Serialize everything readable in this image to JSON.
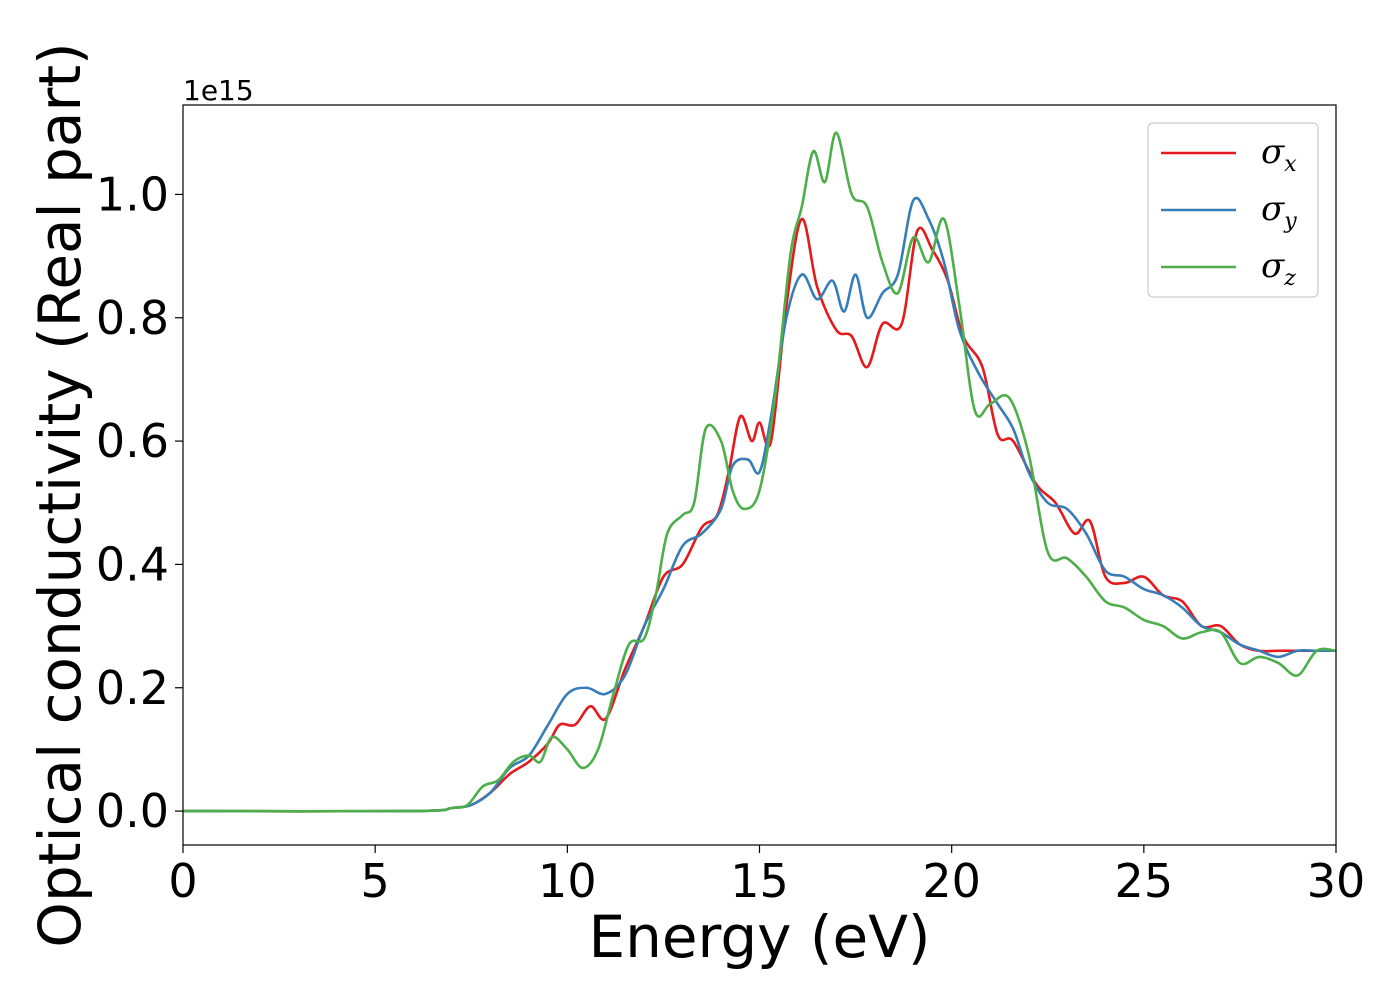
{
  "chart_data": {
    "type": "line",
    "xlabel": "Energy (eV)",
    "ylabel": "Optical conductivity (Real part)",
    "y_offset_text": "1e15",
    "xlim": [
      0,
      30
    ],
    "ylim": [
      -0.055,
      1.145
    ],
    "xticks": [
      0,
      5,
      10,
      15,
      20,
      25,
      30
    ],
    "yticks": [
      0.0,
      0.2,
      0.4,
      0.6,
      0.8,
      1.0
    ],
    "xtick_labels": [
      "0",
      "5",
      "10",
      "15",
      "20",
      "25",
      "30"
    ],
    "ytick_labels": [
      "0.0",
      "0.2",
      "0.4",
      "0.6",
      "0.8",
      "1.0"
    ],
    "grid": false,
    "legend_position": "top-right",
    "series": [
      {
        "name": "σx",
        "symbol": "σ",
        "subscript": "x",
        "color": "#e41a1c",
        "points": [
          [
            0,
            0
          ],
          [
            6,
            0
          ],
          [
            7,
            0.005
          ],
          [
            7.5,
            0.01
          ],
          [
            8,
            0.03
          ],
          [
            8.5,
            0.06
          ],
          [
            9,
            0.08
          ],
          [
            9.5,
            0.11
          ],
          [
            9.8,
            0.14
          ],
          [
            10.2,
            0.14
          ],
          [
            10.6,
            0.17
          ],
          [
            11,
            0.15
          ],
          [
            11.5,
            0.23
          ],
          [
            12,
            0.3
          ],
          [
            12.5,
            0.38
          ],
          [
            13,
            0.4
          ],
          [
            13.5,
            0.46
          ],
          [
            13.9,
            0.48
          ],
          [
            14.2,
            0.55
          ],
          [
            14.5,
            0.64
          ],
          [
            14.8,
            0.6
          ],
          [
            15,
            0.63
          ],
          [
            15.3,
            0.6
          ],
          [
            15.7,
            0.82
          ],
          [
            16.1,
            0.96
          ],
          [
            16.5,
            0.85
          ],
          [
            17,
            0.78
          ],
          [
            17.4,
            0.77
          ],
          [
            17.8,
            0.72
          ],
          [
            18.2,
            0.79
          ],
          [
            18.7,
            0.79
          ],
          [
            19.1,
            0.94
          ],
          [
            19.5,
            0.91
          ],
          [
            19.9,
            0.86
          ],
          [
            20.3,
            0.77
          ],
          [
            20.8,
            0.72
          ],
          [
            21.2,
            0.61
          ],
          [
            21.6,
            0.6
          ],
          [
            22.2,
            0.53
          ],
          [
            22.7,
            0.5
          ],
          [
            23.2,
            0.45
          ],
          [
            23.6,
            0.47
          ],
          [
            24,
            0.38
          ],
          [
            24.5,
            0.37
          ],
          [
            25,
            0.38
          ],
          [
            25.5,
            0.35
          ],
          [
            26,
            0.34
          ],
          [
            26.5,
            0.3
          ],
          [
            27,
            0.3
          ],
          [
            27.5,
            0.27
          ],
          [
            28,
            0.26
          ],
          [
            28.5,
            0.26
          ],
          [
            29,
            0.26
          ],
          [
            29.5,
            0.26
          ],
          [
            30,
            0.26
          ]
        ]
      },
      {
        "name": "σy",
        "symbol": "σ",
        "subscript": "y",
        "color": "#377eb8",
        "points": [
          [
            0,
            0
          ],
          [
            6,
            0
          ],
          [
            7,
            0.005
          ],
          [
            7.5,
            0.01
          ],
          [
            8,
            0.03
          ],
          [
            8.5,
            0.07
          ],
          [
            9,
            0.09
          ],
          [
            9.5,
            0.14
          ],
          [
            10,
            0.19
          ],
          [
            10.5,
            0.2
          ],
          [
            11,
            0.19
          ],
          [
            11.5,
            0.22
          ],
          [
            12,
            0.3
          ],
          [
            12.5,
            0.36
          ],
          [
            13,
            0.43
          ],
          [
            13.5,
            0.45
          ],
          [
            14,
            0.49
          ],
          [
            14.3,
            0.56
          ],
          [
            14.7,
            0.57
          ],
          [
            15,
            0.55
          ],
          [
            15.3,
            0.64
          ],
          [
            15.7,
            0.8
          ],
          [
            16.1,
            0.87
          ],
          [
            16.5,
            0.83
          ],
          [
            16.9,
            0.86
          ],
          [
            17.2,
            0.81
          ],
          [
            17.5,
            0.87
          ],
          [
            17.8,
            0.8
          ],
          [
            18.2,
            0.84
          ],
          [
            18.6,
            0.87
          ],
          [
            19,
            0.99
          ],
          [
            19.4,
            0.96
          ],
          [
            19.8,
            0.89
          ],
          [
            20.2,
            0.78
          ],
          [
            20.7,
            0.71
          ],
          [
            21.2,
            0.66
          ],
          [
            21.6,
            0.62
          ],
          [
            22,
            0.55
          ],
          [
            22.5,
            0.5
          ],
          [
            23,
            0.49
          ],
          [
            23.5,
            0.45
          ],
          [
            24,
            0.39
          ],
          [
            24.5,
            0.38
          ],
          [
            25,
            0.36
          ],
          [
            25.5,
            0.35
          ],
          [
            26,
            0.33
          ],
          [
            26.5,
            0.3
          ],
          [
            27,
            0.29
          ],
          [
            27.5,
            0.27
          ],
          [
            28,
            0.26
          ],
          [
            28.5,
            0.25
          ],
          [
            29,
            0.26
          ],
          [
            29.5,
            0.26
          ],
          [
            30,
            0.26
          ]
        ]
      },
      {
        "name": "σz",
        "symbol": "σ",
        "subscript": "z",
        "color": "#4daf4a",
        "points": [
          [
            0,
            0
          ],
          [
            6,
            0
          ],
          [
            7,
            0.005
          ],
          [
            7.4,
            0.01
          ],
          [
            7.8,
            0.04
          ],
          [
            8.2,
            0.05
          ],
          [
            8.6,
            0.08
          ],
          [
            9,
            0.09
          ],
          [
            9.3,
            0.08
          ],
          [
            9.6,
            0.12
          ],
          [
            10,
            0.1
          ],
          [
            10.4,
            0.07
          ],
          [
            10.8,
            0.1
          ],
          [
            11.2,
            0.19
          ],
          [
            11.6,
            0.27
          ],
          [
            12,
            0.28
          ],
          [
            12.3,
            0.35
          ],
          [
            12.6,
            0.45
          ],
          [
            13,
            0.48
          ],
          [
            13.3,
            0.5
          ],
          [
            13.6,
            0.62
          ],
          [
            14,
            0.6
          ],
          [
            14.3,
            0.52
          ],
          [
            14.6,
            0.49
          ],
          [
            15,
            0.52
          ],
          [
            15.4,
            0.67
          ],
          [
            15.8,
            0.9
          ],
          [
            16.1,
            0.98
          ],
          [
            16.4,
            1.07
          ],
          [
            16.7,
            1.02
          ],
          [
            17,
            1.1
          ],
          [
            17.4,
            1.0
          ],
          [
            17.8,
            0.98
          ],
          [
            18.2,
            0.89
          ],
          [
            18.6,
            0.84
          ],
          [
            19,
            0.93
          ],
          [
            19.4,
            0.89
          ],
          [
            19.8,
            0.96
          ],
          [
            20.2,
            0.82
          ],
          [
            20.6,
            0.65
          ],
          [
            21,
            0.66
          ],
          [
            21.5,
            0.67
          ],
          [
            22,
            0.58
          ],
          [
            22.5,
            0.42
          ],
          [
            23,
            0.41
          ],
          [
            23.5,
            0.38
          ],
          [
            24,
            0.34
          ],
          [
            24.5,
            0.33
          ],
          [
            25,
            0.31
          ],
          [
            25.5,
            0.3
          ],
          [
            26,
            0.28
          ],
          [
            26.5,
            0.29
          ],
          [
            27,
            0.29
          ],
          [
            27.5,
            0.24
          ],
          [
            28,
            0.25
          ],
          [
            28.5,
            0.24
          ],
          [
            29,
            0.22
          ],
          [
            29.5,
            0.26
          ],
          [
            30,
            0.26
          ]
        ]
      }
    ]
  }
}
